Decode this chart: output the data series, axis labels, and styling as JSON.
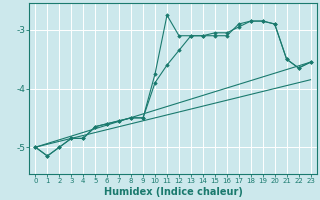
{
  "xlabel": "Humidex (Indice chaleur)",
  "bg_color": "#cce8ec",
  "grid_color": "#ffffff",
  "line_color": "#1a7a6e",
  "xlim": [
    -0.5,
    23.5
  ],
  "ylim": [
    -5.45,
    -2.55
  ],
  "yticks": [
    -5,
    -4,
    -3
  ],
  "xticks": [
    0,
    1,
    2,
    3,
    4,
    5,
    6,
    7,
    8,
    9,
    10,
    11,
    12,
    13,
    14,
    15,
    16,
    17,
    18,
    19,
    20,
    21,
    22,
    23
  ],
  "series1": [
    [
      0,
      -5.0
    ],
    [
      1,
      -5.15
    ],
    [
      2,
      -5.0
    ],
    [
      3,
      -4.85
    ],
    [
      4,
      -4.85
    ],
    [
      5,
      -4.65
    ],
    [
      6,
      -4.6
    ],
    [
      7,
      -4.55
    ],
    [
      8,
      -4.5
    ],
    [
      9,
      -4.5
    ],
    [
      10,
      -3.75
    ],
    [
      11,
      -2.75
    ],
    [
      12,
      -3.1
    ],
    [
      13,
      -3.1
    ],
    [
      14,
      -3.1
    ],
    [
      15,
      -3.1
    ],
    [
      16,
      -3.1
    ],
    [
      17,
      -2.9
    ],
    [
      18,
      -2.85
    ],
    [
      19,
      -2.85
    ],
    [
      20,
      -2.9
    ],
    [
      21,
      -3.5
    ],
    [
      22,
      -3.65
    ],
    [
      23,
      -3.55
    ]
  ],
  "series2": [
    [
      0,
      -5.0
    ],
    [
      1,
      -5.15
    ],
    [
      2,
      -5.0
    ],
    [
      3,
      -4.85
    ],
    [
      4,
      -4.85
    ],
    [
      5,
      -4.65
    ],
    [
      6,
      -4.6
    ],
    [
      7,
      -4.55
    ],
    [
      8,
      -4.5
    ],
    [
      9,
      -4.5
    ],
    [
      10,
      -3.9
    ],
    [
      11,
      -3.6
    ],
    [
      12,
      -3.35
    ],
    [
      13,
      -3.1
    ],
    [
      14,
      -3.1
    ],
    [
      15,
      -3.05
    ],
    [
      16,
      -3.05
    ],
    [
      17,
      -2.95
    ],
    [
      18,
      -2.85
    ],
    [
      19,
      -2.85
    ],
    [
      20,
      -2.9
    ],
    [
      21,
      -3.5
    ],
    [
      22,
      -3.65
    ],
    [
      23,
      -3.55
    ]
  ],
  "series3": [
    [
      0,
      -5.0
    ],
    [
      23,
      -3.55
    ]
  ],
  "series4": [
    [
      0,
      -5.0
    ],
    [
      23,
      -3.85
    ]
  ]
}
